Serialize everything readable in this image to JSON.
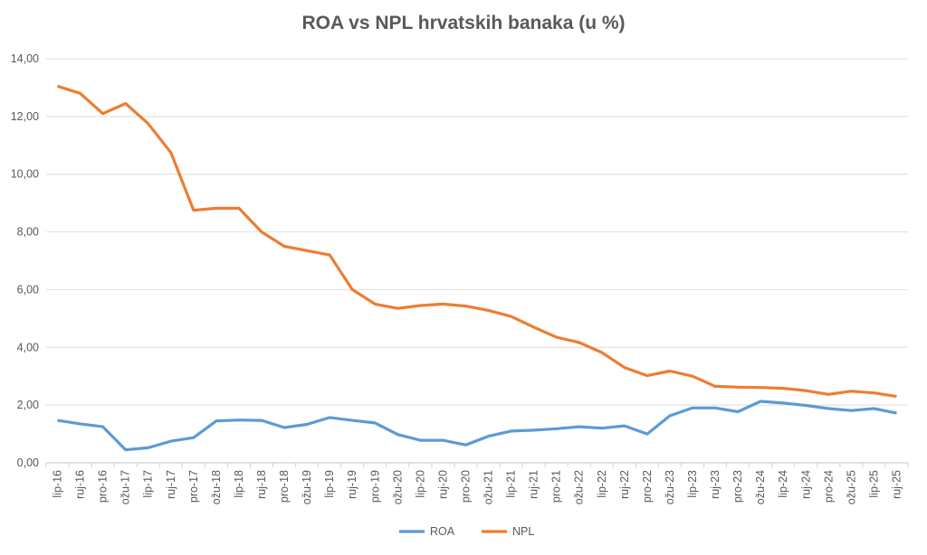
{
  "chart_data": {
    "type": "line",
    "title": "ROA vs NPL hrvatskih banaka (u %)",
    "xlabel": "",
    "ylabel": "",
    "ylim": [
      0,
      14
    ],
    "yticks": [
      "0,00",
      "2,00",
      "4,00",
      "6,00",
      "8,00",
      "10,00",
      "12,00",
      "14,00"
    ],
    "grid": true,
    "legend_position": "bottom",
    "categories": [
      "lip-16",
      "ruj-16",
      "pro-16",
      "ožu-17",
      "lip-17",
      "ruj-17",
      "pro-17",
      "ožu-18",
      "lip-18",
      "ruj-18",
      "pro-18",
      "ožu-19",
      "lip-19",
      "ruj-19",
      "pro-19",
      "ožu-20",
      "lip-20",
      "ruj-20",
      "pro-20",
      "ožu-21",
      "lip-21",
      "ruj-21",
      "pro-21",
      "ožu-22",
      "lip-22",
      "ruj-22",
      "pro-22",
      "ožu-23",
      "lip-23",
      "ruj-23",
      "pro-23",
      "ožu-24",
      "lip-24",
      "ruj-24",
      "pro-24",
      "ožu-25",
      "lip-25",
      "ruj-25"
    ],
    "series": [
      {
        "name": "ROA",
        "color": "#5B9BD5",
        "values": [
          1.47,
          1.35,
          1.25,
          0.45,
          0.52,
          0.75,
          0.87,
          1.45,
          1.48,
          1.47,
          1.22,
          1.33,
          1.57,
          1.47,
          1.38,
          0.98,
          0.78,
          0.78,
          0.62,
          0.92,
          1.1,
          1.13,
          1.18,
          1.25,
          1.2,
          1.28,
          1.0,
          1.63,
          1.9,
          1.9,
          1.77,
          2.13,
          2.07,
          1.99,
          1.88,
          1.81,
          1.88,
          1.72
        ]
      },
      {
        "name": "NPL",
        "color": "#ED7D31",
        "values": [
          13.05,
          12.8,
          12.1,
          12.45,
          11.75,
          10.75,
          8.75,
          8.82,
          8.82,
          8.0,
          7.5,
          7.35,
          7.2,
          6.0,
          5.5,
          5.35,
          5.45,
          5.5,
          5.43,
          5.28,
          5.07,
          4.7,
          4.35,
          4.17,
          3.82,
          3.3,
          3.02,
          3.18,
          3.0,
          2.65,
          2.62,
          2.61,
          2.58,
          2.5,
          2.37,
          2.48,
          2.42,
          2.3
        ]
      }
    ]
  }
}
